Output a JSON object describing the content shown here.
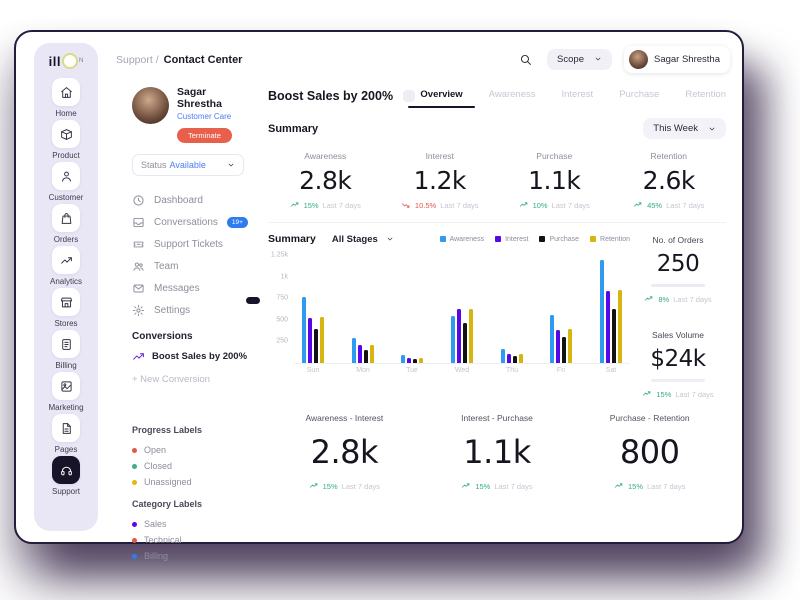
{
  "topbar": {
    "breadcrumb": {
      "parent": "Support /",
      "current": "Contact Center"
    },
    "scope_label": "Scope",
    "user_name": "Sagar Shrestha"
  },
  "rail": {
    "logo": {
      "text": "ill",
      "suffix": "N"
    },
    "items": [
      {
        "label": "Home",
        "icon": "home",
        "active": false
      },
      {
        "label": "Product",
        "icon": "product",
        "active": false
      },
      {
        "label": "Customer",
        "icon": "customer",
        "active": false
      },
      {
        "label": "Orders",
        "icon": "orders",
        "active": false
      },
      {
        "label": "Analytics",
        "icon": "analytics",
        "active": false
      },
      {
        "label": "Stores",
        "icon": "stores",
        "active": false
      },
      {
        "label": "Billing",
        "icon": "billing",
        "active": false
      },
      {
        "label": "Marketing",
        "icon": "marketing",
        "active": false
      },
      {
        "label": "Pages",
        "icon": "pages",
        "active": false
      },
      {
        "label": "Support",
        "icon": "support",
        "active": true
      }
    ]
  },
  "sidebar": {
    "profile": {
      "name": "Sagar Shrestha",
      "role": "Customer Care",
      "action_label": "Terminate"
    },
    "status": {
      "label": "Status",
      "value": "Available"
    },
    "menu": [
      {
        "label": "Dashboard",
        "icon": "clock",
        "badge": ""
      },
      {
        "label": "Conversations",
        "icon": "inbox",
        "badge": "19+"
      },
      {
        "label": "Support Tickets",
        "icon": "ticket",
        "badge": ""
      },
      {
        "label": "Team",
        "icon": "team",
        "badge": ""
      },
      {
        "label": "Messages",
        "icon": "mail",
        "badge": ""
      },
      {
        "label": "Settings",
        "icon": "gear",
        "badge": ""
      }
    ],
    "conversions": {
      "heading": "Conversions",
      "active_item": "Boost Sales by 200%",
      "new_link": "+ New Conversion"
    },
    "progress_labels": {
      "heading": "Progress Labels",
      "items": [
        {
          "label": "Open",
          "color": "#e2574c"
        },
        {
          "label": "Closed",
          "color": "#3faf7e"
        },
        {
          "label": "Unassigned",
          "color": "#e3b70f"
        }
      ]
    },
    "category_labels": {
      "heading": "Category Labels",
      "items": [
        {
          "label": "Sales",
          "color": "#5708ea"
        },
        {
          "label": "Technical",
          "color": "#e2574c"
        },
        {
          "label": "Billing",
          "color": "#2e7cf0"
        }
      ]
    }
  },
  "main": {
    "title": "Boost Sales by 200%",
    "tabs": [
      {
        "label": "Overview",
        "active": true
      },
      {
        "label": "Awareness",
        "active": false
      },
      {
        "label": "Interest",
        "active": false
      },
      {
        "label": "Purchase",
        "active": false
      },
      {
        "label": "Retention",
        "active": false
      }
    ],
    "summary_label": "Summary",
    "period_filter": "This Week",
    "metrics": [
      {
        "label": "Awareness",
        "value": "2.8k",
        "change": "15%",
        "direction": "up",
        "period": "Last 7 days"
      },
      {
        "label": "Interest",
        "value": "1.2k",
        "change": "10.5%",
        "direction": "down",
        "period": "Last 7 days"
      },
      {
        "label": "Purchase",
        "value": "1.1k",
        "change": "10%",
        "direction": "up",
        "period": "Last 7 days"
      },
      {
        "label": "Retention",
        "value": "2.6k",
        "change": "45%",
        "direction": "up",
        "period": "Last 7 days"
      }
    ],
    "chart_header": {
      "title": "Summary",
      "filter": "All Stages"
    },
    "orders": {
      "label": "No. of Orders",
      "value": "250",
      "change": "8%",
      "direction": "up",
      "period": "Last 7 days"
    },
    "sales": {
      "label": "Sales Volume",
      "value": "$24k",
      "change": "15%",
      "direction": "up",
      "period": "Last 7 days"
    },
    "funnel_metrics": [
      {
        "label": "Awareness - Interest",
        "value": "2.8k",
        "change": "15%",
        "direction": "up",
        "period": "Last 7 days"
      },
      {
        "label": "Interest - Purchase",
        "value": "1.1k",
        "change": "15%",
        "direction": "up",
        "period": "Last 7 days"
      },
      {
        "label": "Purchase - Retention",
        "value": "800",
        "change": "15%",
        "direction": "up",
        "period": "Last 7 days"
      }
    ]
  },
  "chart_data": {
    "type": "bar",
    "categories": [
      "Sun",
      "Mon",
      "Tue",
      "Wed",
      "Thu",
      "Fri",
      "Sat"
    ],
    "series": [
      {
        "name": "Awareness",
        "color": "#2e9bf0",
        "values": [
          760,
          295,
          90,
          540,
          165,
          550,
          1190
        ]
      },
      {
        "name": "Interest",
        "color": "#5708ea",
        "values": [
          520,
          210,
          60,
          630,
          105,
          385,
          830
        ]
      },
      {
        "name": "Purchase",
        "color": "#121212",
        "values": [
          390,
          145,
          45,
          460,
          80,
          300,
          620
        ]
      },
      {
        "name": "Retention",
        "color": "#d8b40e",
        "values": [
          530,
          205,
          60,
          630,
          105,
          395,
          845
        ]
      }
    ],
    "yticks": [
      {
        "label": "1.25k",
        "value": 1250
      },
      {
        "label": "1k",
        "value": 1000
      },
      {
        "label": "750",
        "value": 750
      },
      {
        "label": "500",
        "value": 500
      },
      {
        "label": "250",
        "value": 250
      }
    ],
    "ylim": [
      0,
      1250
    ],
    "grid": false,
    "legend_position": "top"
  }
}
